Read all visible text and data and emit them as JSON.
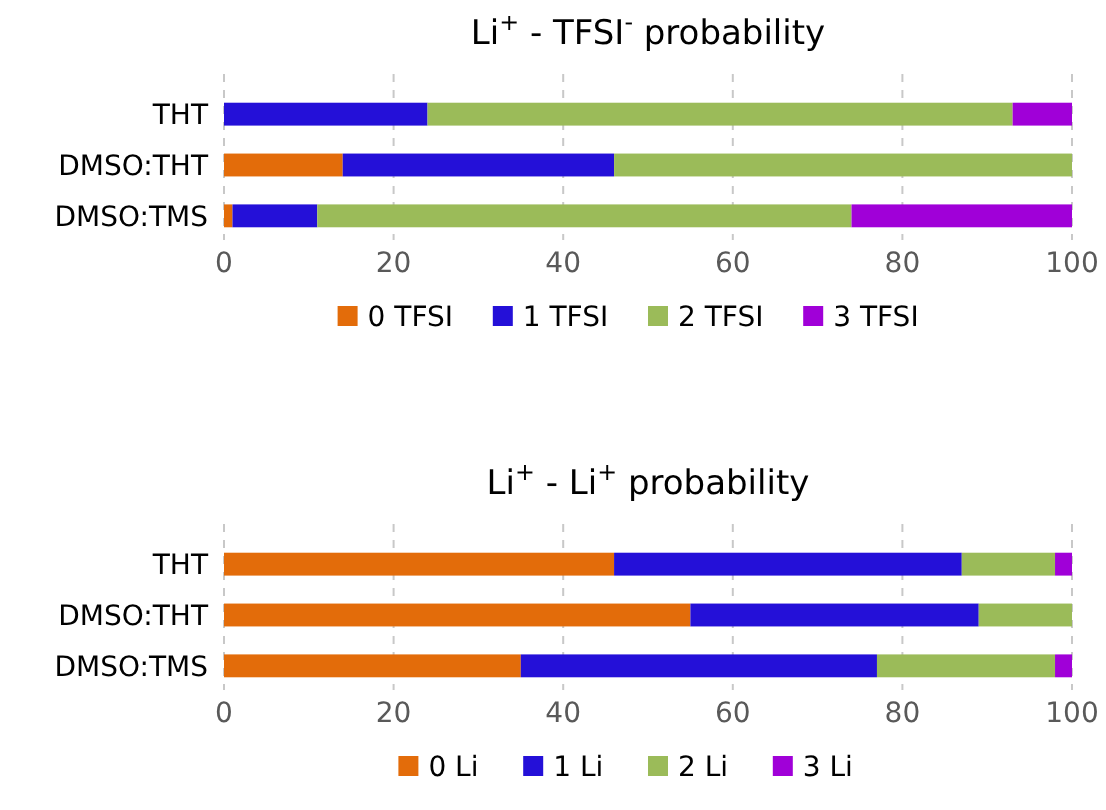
{
  "chart_data": [
    {
      "type": "bar",
      "orientation": "horizontal",
      "stacked": true,
      "title": "Li$^{+}$ - TFSI$^{-}$ probability",
      "categories": [
        "THT",
        "DMSO:THT",
        "DMSO:TMS"
      ],
      "series": [
        {
          "name": "0 TFSI",
          "color": "#e36c0a",
          "values": [
            0,
            14,
            1
          ]
        },
        {
          "name": "1 TFSI",
          "color": "#2410d8",
          "values": [
            24,
            32,
            10
          ]
        },
        {
          "name": "2 TFSI",
          "color": "#9bbb59",
          "values": [
            69,
            54,
            63
          ]
        },
        {
          "name": "3 TFSI",
          "color": "#a000d8",
          "values": [
            7,
            0,
            26
          ]
        }
      ],
      "xlim": [
        0,
        100
      ],
      "xticks": [
        0,
        20,
        40,
        60,
        80,
        100
      ],
      "grid": "x",
      "legend": "bottom"
    },
    {
      "type": "bar",
      "orientation": "horizontal",
      "stacked": true,
      "title": "Li$^{+}$ - Li$^{+}$ probability",
      "categories": [
        "THT",
        "DMSO:THT",
        "DMSO:TMS"
      ],
      "series": [
        {
          "name": "0 Li",
          "color": "#e36c0a",
          "values": [
            46,
            55,
            35
          ]
        },
        {
          "name": "1 Li",
          "color": "#2410d8",
          "values": [
            41,
            34,
            42
          ]
        },
        {
          "name": "2 Li",
          "color": "#9bbb59",
          "values": [
            11,
            11,
            21
          ]
        },
        {
          "name": "3 Li",
          "color": "#a000d8",
          "values": [
            2,
            0,
            2
          ]
        }
      ],
      "xlim": [
        0,
        100
      ],
      "xticks": [
        0,
        20,
        40,
        60,
        80,
        100
      ],
      "grid": "x",
      "legend": "bottom"
    }
  ]
}
